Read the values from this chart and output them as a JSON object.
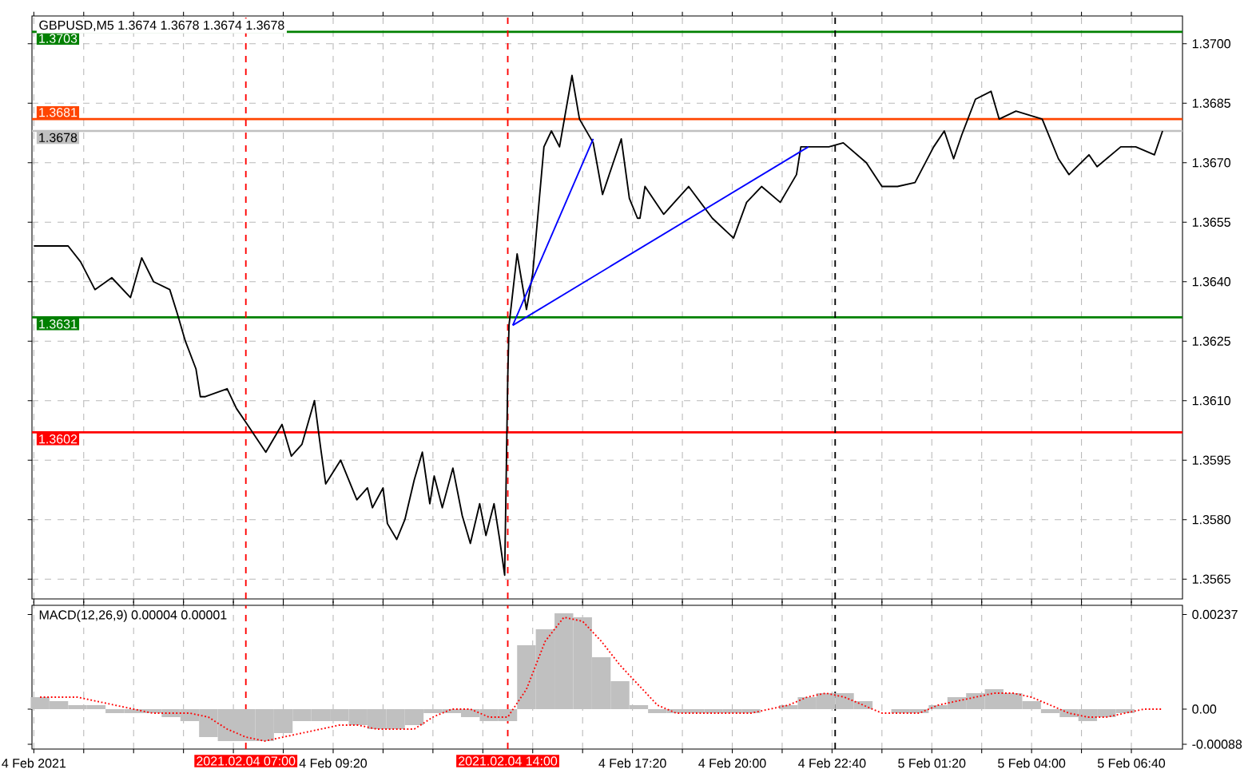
{
  "chart_data": [
    {
      "type": "line",
      "title": "GBPUSD,M5  1.3674 1.3678 1.3674 1.3678",
      "xlim": [
        "2021-02-04T01:17",
        "2021-02-05T08:02"
      ],
      "ylim": [
        1.356,
        1.3707
      ],
      "tick_labels": "y",
      "grid": true,
      "xticks": [
        {
          "value": "2021-02-04T01:20",
          "label": null
        },
        {
          "value": "2021-02-04T02:40",
          "label": null
        },
        {
          "value": "2021-02-04T04:00",
          "label": null
        },
        {
          "value": "2021-02-04T05:20",
          "label": null
        },
        {
          "value": "2021-02-04T06:40",
          "label": null
        },
        {
          "value": "2021-02-04T08:00",
          "label": null
        },
        {
          "value": "2021-02-04T09:20",
          "label": null
        },
        {
          "value": "2021-02-04T10:40",
          "label": null
        },
        {
          "value": "2021-02-04T12:00",
          "label": null
        },
        {
          "value": "2021-02-04T13:20",
          "label": null
        },
        {
          "value": "2021-02-04T14:40",
          "label": null
        },
        {
          "value": "2021-02-04T16:00",
          "label": null
        },
        {
          "value": "2021-02-04T17:20",
          "label": null
        },
        {
          "value": "2021-02-04T18:40",
          "label": null
        },
        {
          "value": "2021-02-04T20:00",
          "label": null
        },
        {
          "value": "2021-02-04T21:20",
          "label": null
        },
        {
          "value": "2021-02-04T22:40",
          "label": null
        },
        {
          "value": "2021-02-05T00:00",
          "label": null
        },
        {
          "value": "2021-02-05T01:20",
          "label": null
        },
        {
          "value": "2021-02-05T02:40",
          "label": null
        },
        {
          "value": "2021-02-05T04:00",
          "label": null
        },
        {
          "value": "2021-02-05T05:20",
          "label": null
        },
        {
          "value": "2021-02-05T06:40",
          "label": null
        }
      ],
      "yticks": [
        {
          "value": 1.3565,
          "label": "1.3565"
        },
        {
          "value": 1.358,
          "label": "1.3580"
        },
        {
          "value": 1.3595,
          "label": "1.3595"
        },
        {
          "value": 1.361,
          "label": "1.3610"
        },
        {
          "value": 1.3625,
          "label": "1.3625"
        },
        {
          "value": 1.364,
          "label": "1.3640"
        },
        {
          "value": 1.3655,
          "label": "1.3655"
        },
        {
          "value": 1.367,
          "label": "1.3670"
        },
        {
          "value": 1.3685,
          "label": "1.3685"
        },
        {
          "value": 1.37,
          "label": "1.3700"
        }
      ],
      "series": [
        {
          "color": "#000000",
          "x": [
            "2021-02-04T01:20",
            "2021-02-04T02:15",
            "2021-02-04T02:35",
            "2021-02-04T02:58",
            "2021-02-04T03:25",
            "2021-02-04T03:55",
            "2021-02-04T04:13",
            "2021-02-04T04:32",
            "2021-02-04T04:58",
            "2021-02-04T05:10",
            "2021-02-04T05:23",
            "2021-02-04T05:40",
            "2021-02-04T05:47",
            "2021-02-04T05:55",
            "2021-02-04T06:30",
            "2021-02-04T06:45",
            "2021-02-04T06:58",
            "2021-02-04T07:32",
            "2021-02-04T07:58",
            "2021-02-04T08:13",
            "2021-02-04T08:30",
            "2021-02-04T08:50",
            "2021-02-04T09:00",
            "2021-02-04T09:08",
            "2021-02-04T09:32",
            "2021-02-04T09:58",
            "2021-02-04T10:15",
            "2021-02-04T10:23",
            "2021-02-04T10:40",
            "2021-02-04T10:47",
            "2021-02-04T11:02",
            "2021-02-04T11:15",
            "2021-02-04T11:30",
            "2021-02-04T11:43",
            "2021-02-04T11:55",
            "2021-02-04T12:02",
            "2021-02-04T12:15",
            "2021-02-04T12:32",
            "2021-02-04T12:47",
            "2021-02-04T13:00",
            "2021-02-04T13:15",
            "2021-02-04T13:25",
            "2021-02-04T13:38",
            "2021-02-04T13:47",
            "2021-02-04T13:55",
            "2021-02-04T14:00",
            "2021-02-04T14:02",
            "2021-02-04T14:15",
            "2021-02-04T14:30",
            "2021-02-04T14:40",
            "2021-02-04T14:58",
            "2021-02-04T15:10",
            "2021-02-04T15:23",
            "2021-02-04T15:43",
            "2021-02-04T15:55",
            "2021-02-04T16:17",
            "2021-02-04T16:32",
            "2021-02-04T17:02",
            "2021-02-04T17:15",
            "2021-02-04T17:28",
            "2021-02-04T17:32",
            "2021-02-04T17:40",
            "2021-02-04T18:10",
            "2021-02-04T18:50",
            "2021-02-04T19:28",
            "2021-02-04T20:02",
            "2021-02-04T20:23",
            "2021-02-04T20:47",
            "2021-02-04T21:17",
            "2021-02-04T21:43",
            "2021-02-04T21:50",
            "2021-02-04T22:35",
            "2021-02-04T22:58",
            "2021-02-04T23:35",
            "2021-02-05T00:00",
            "2021-02-05T00:25",
            "2021-02-05T00:53",
            "2021-02-05T01:23",
            "2021-02-05T01:40",
            "2021-02-05T01:55",
            "2021-02-05T02:08",
            "2021-02-05T02:30",
            "2021-02-05T02:55",
            "2021-02-05T03:08",
            "2021-02-05T03:35",
            "2021-02-05T04:17",
            "2021-02-05T04:43",
            "2021-02-05T05:00",
            "2021-02-05T05:32",
            "2021-02-05T05:45",
            "2021-02-05T06:23",
            "2021-02-05T06:47",
            "2021-02-05T07:17",
            "2021-02-05T07:30"
          ],
          "values": [
            1.3649,
            1.3649,
            1.3645,
            1.3638,
            1.3641,
            1.3636,
            1.3646,
            1.364,
            1.3638,
            1.3632,
            1.3625,
            1.3618,
            1.3611,
            1.3611,
            1.3613,
            1.3608,
            1.3605,
            1.3597,
            1.3604,
            1.3596,
            1.3599,
            1.361,
            1.3598,
            1.3589,
            1.3595,
            1.3585,
            1.3588,
            1.3583,
            1.3588,
            1.3579,
            1.3575,
            1.358,
            1.359,
            1.3597,
            1.3584,
            1.3591,
            1.3583,
            1.3593,
            1.3581,
            1.3574,
            1.3584,
            1.3576,
            1.3584,
            1.3575,
            1.3566,
            1.3616,
            1.3629,
            1.3647,
            1.3633,
            1.3642,
            1.3674,
            1.3678,
            1.3674,
            1.3692,
            1.3681,
            1.3675,
            1.3662,
            1.3676,
            1.3661,
            1.3656,
            1.3656,
            1.3664,
            1.3657,
            1.3664,
            1.3656,
            1.3651,
            1.366,
            1.3664,
            1.366,
            1.3667,
            1.3674,
            1.3674,
            1.3675,
            1.367,
            1.3664,
            1.3664,
            1.3665,
            1.3674,
            1.3678,
            1.3671,
            1.3677,
            1.3686,
            1.3688,
            1.3681,
            1.3683,
            1.3681,
            1.3671,
            1.3667,
            1.3672,
            1.3669,
            1.3674,
            1.3674,
            1.3672,
            1.3678
          ]
        },
        {
          "color": "#0000ff",
          "x": [
            "2021-02-04T14:08",
            "2021-02-04T16:17"
          ],
          "values": [
            1.3629,
            1.3676
          ]
        },
        {
          "color": "#0000ff",
          "x": [
            "2021-02-04T14:08",
            "2021-02-04T22:02"
          ],
          "values": [
            1.3629,
            1.3674
          ]
        }
      ],
      "ref_lines": [
        {
          "axis": "y",
          "value": 1.3703,
          "label": "1.3703",
          "color": "#008000"
        },
        {
          "axis": "y",
          "value": 1.3681,
          "label": "1.3681",
          "color": "#ff4500"
        },
        {
          "axis": "y",
          "value": 1.3678,
          "label": "1.3678",
          "color": "#c0c0c0"
        },
        {
          "axis": "y",
          "value": 1.3631,
          "label": "1.3631",
          "color": "#008000"
        },
        {
          "axis": "y",
          "value": 1.3602,
          "label": "1.3602",
          "color": "#ff0000"
        },
        {
          "axis": "x",
          "value": "2021-02-04T07:00",
          "color": "#ff0000",
          "line_style": "dashed"
        },
        {
          "axis": "x",
          "value": "2021-02-04T14:00",
          "color": "#ff0000",
          "line_style": "dashed"
        },
        {
          "axis": "x",
          "value": "2021-02-04T22:45",
          "color": "#000000",
          "line_style": "dashed"
        }
      ]
    },
    {
      "type": "bar",
      "title": "MACD(12,26,9) 0.00004 0.00001",
      "xlim": [
        "2021-02-04T01:17",
        "2021-02-05T08:02"
      ],
      "ylim": [
        -0.001,
        0.0026
      ],
      "grid": "x",
      "xticks": [
        {
          "value": "2021-02-04T01:20",
          "label": "4 Feb 2021"
        },
        {
          "value": "2021-02-04T02:40",
          "label": null
        },
        {
          "value": "2021-02-04T04:00",
          "label": null
        },
        {
          "value": "2021-02-04T05:20",
          "label": null
        },
        {
          "value": "2021-02-04T06:40",
          "label": null
        },
        {
          "value": "2021-02-04T08:00",
          "label": null
        },
        {
          "value": "2021-02-04T09:20",
          "label": "4 Feb 09:20"
        },
        {
          "value": "2021-02-04T10:40",
          "label": null
        },
        {
          "value": "2021-02-04T12:00",
          "label": null
        },
        {
          "value": "2021-02-04T13:20",
          "label": null
        },
        {
          "value": "2021-02-04T14:40",
          "label": null
        },
        {
          "value": "2021-02-04T16:00",
          "label": null
        },
        {
          "value": "2021-02-04T17:20",
          "label": "4 Feb 17:20"
        },
        {
          "value": "2021-02-04T18:40",
          "label": null
        },
        {
          "value": "2021-02-04T20:00",
          "label": "4 Feb 20:00"
        },
        {
          "value": "2021-02-04T21:20",
          "label": null
        },
        {
          "value": "2021-02-04T22:40",
          "label": "4 Feb 22:40"
        },
        {
          "value": "2021-02-05T00:00",
          "label": null
        },
        {
          "value": "2021-02-05T01:20",
          "label": "5 Feb 01:20"
        },
        {
          "value": "2021-02-05T02:40",
          "label": null
        },
        {
          "value": "2021-02-05T04:00",
          "label": "5 Feb 04:00"
        },
        {
          "value": "2021-02-05T05:20",
          "label": null
        },
        {
          "value": "2021-02-05T06:40",
          "label": "5 Feb 06:40"
        }
      ],
      "yticks": [
        {
          "value": -0.00088,
          "label": "-0.00088"
        },
        {
          "value": 0,
          "label": "0.00"
        },
        {
          "value": 0.00237,
          "label": "0.00237"
        }
      ],
      "x": [
        "2021-02-04T01:30",
        "2021-02-04T02:00",
        "2021-02-04T02:30",
        "2021-02-04T03:00",
        "2021-02-04T03:30",
        "2021-02-04T04:00",
        "2021-02-04T04:30",
        "2021-02-04T05:00",
        "2021-02-04T05:30",
        "2021-02-04T06:00",
        "2021-02-04T06:30",
        "2021-02-04T07:00",
        "2021-02-04T07:30",
        "2021-02-04T08:00",
        "2021-02-04T08:30",
        "2021-02-04T09:00",
        "2021-02-04T09:30",
        "2021-02-04T10:00",
        "2021-02-04T10:30",
        "2021-02-04T11:00",
        "2021-02-04T11:30",
        "2021-02-04T12:00",
        "2021-02-04T12:30",
        "2021-02-04T13:00",
        "2021-02-04T13:30",
        "2021-02-04T14:00",
        "2021-02-04T14:30",
        "2021-02-04T15:00",
        "2021-02-04T15:30",
        "2021-02-04T16:00",
        "2021-02-04T16:30",
        "2021-02-04T17:00",
        "2021-02-04T17:30",
        "2021-02-04T18:00",
        "2021-02-04T18:30",
        "2021-02-04T19:00",
        "2021-02-04T19:30",
        "2021-02-04T20:00",
        "2021-02-04T20:30",
        "2021-02-04T21:00",
        "2021-02-04T21:30",
        "2021-02-04T22:00",
        "2021-02-04T22:30",
        "2021-02-04T23:00",
        "2021-02-04T23:30",
        "2021-02-05T00:00",
        "2021-02-05T00:30",
        "2021-02-05T01:00",
        "2021-02-05T01:30",
        "2021-02-05T02:00",
        "2021-02-05T02:30",
        "2021-02-05T03:00",
        "2021-02-05T03:30",
        "2021-02-05T04:00",
        "2021-02-05T04:30",
        "2021-02-05T05:00",
        "2021-02-05T05:30",
        "2021-02-05T06:00",
        "2021-02-05T06:30",
        "2021-02-05T07:00",
        "2021-02-05T07:30"
      ],
      "series": [
        {
          "type": "bar",
          "color": "#c0c0c0",
          "values": [
            0.0003,
            0.0002,
            0.0001,
            0.0001,
            -0.0001,
            -0.0001,
            -0.0001,
            -0.0002,
            -0.0003,
            -0.0007,
            -0.0008,
            -0.0008,
            -0.0008,
            -0.0006,
            -0.0003,
            -0.0003,
            -0.0003,
            -0.0004,
            -0.0005,
            -0.0005,
            -0.0004,
            -0.0001,
            -0.0001,
            -0.0002,
            -0.0003,
            -0.0003,
            0.0016,
            0.002,
            0.0024,
            0.0023,
            0.0013,
            0.0007,
            0.0001,
            -0.0001,
            -0.0001,
            -0.0001,
            -0.0001,
            -0.0001,
            -0.0001,
            0,
            0.0001,
            0.0003,
            0.0004,
            0.0004,
            0.0002,
            0,
            -0.0001,
            -0.0001,
            0.0001,
            0.0003,
            0.0004,
            0.0005,
            0.0004,
            0.0002,
            -0.0001,
            -0.0002,
            -0.0003,
            -0.0002,
            -0.0001,
            0,
            0
          ]
        },
        {
          "type": "line",
          "color": "#ff0000",
          "line_style": "dotted",
          "values": [
            0.0003,
            0.0003,
            0.0003,
            0.0002,
            0.0001,
            0,
            -0.0001,
            -0.0001,
            -0.0001,
            -0.0002,
            -0.0005,
            -0.0007,
            -0.0008,
            -0.0007,
            -0.0006,
            -0.0005,
            -0.0004,
            -0.0004,
            -0.0005,
            -0.0005,
            -0.0005,
            -0.0002,
            0,
            0,
            -0.0002,
            -0.0002,
            0.0005,
            0.0017,
            0.0023,
            0.0022,
            0.0017,
            0.0011,
            0.0006,
            0.0001,
            -0.0001,
            -0.0001,
            -0.0001,
            -0.0001,
            -0.0001,
            0,
            0.0001,
            0.0003,
            0.0004,
            0.0003,
            0.0001,
            -0.0001,
            -0.0001,
            -0.0001,
            0.0001,
            0.0002,
            0.0003,
            0.0004,
            0.0004,
            0.0003,
            0.0001,
            -0.0001,
            -0.0002,
            -0.0002,
            -0.0001,
            0,
            0
          ]
        }
      ],
      "ref_lines": [
        {
          "axis": "x",
          "value": "2021-02-04T07:00",
          "label": "2021.02.04 07:00",
          "color": "#ff0000",
          "line_style": "dashed"
        },
        {
          "axis": "x",
          "value": "2021-02-04T14:00",
          "label": "2021.02.04 14:00",
          "color": "#ff0000",
          "line_style": "dashed"
        },
        {
          "axis": "x",
          "value": "2021-02-04T22:45",
          "color": "#000000",
          "line_style": "dashed"
        }
      ]
    }
  ]
}
